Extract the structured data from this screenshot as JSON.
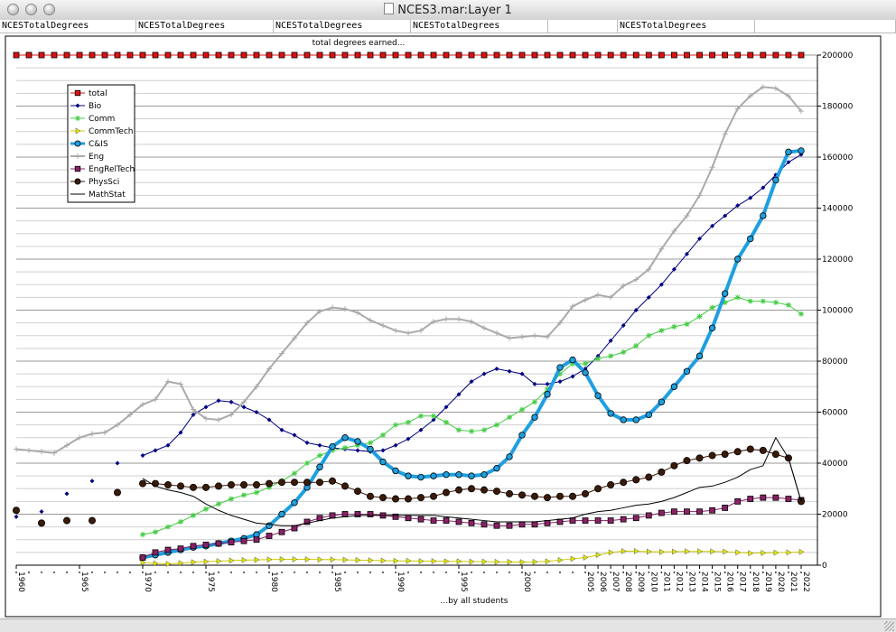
{
  "window": {
    "title": "NCES3.mar:Layer 1"
  },
  "header_cells": [
    "NCESTotalDegrees",
    "NCESTotalDegrees",
    "NCESTotalDegrees",
    "NCESTotalDegrees",
    "",
    "NCESTotalDegrees",
    ""
  ],
  "chart_data": {
    "type": "line",
    "title": "total degrees earned...",
    "xlabel": "...by all students",
    "ylabel": "",
    "ylim": [
      0,
      200000
    ],
    "yticks": [
      0,
      20000,
      40000,
      60000,
      80000,
      100000,
      120000,
      140000,
      160000,
      180000,
      200000
    ],
    "ytick_labels": [
      "0",
      "20000",
      "40000",
      "60000",
      "80000",
      "100000",
      "120000",
      "140000",
      "160000",
      "180000",
      "200000"
    ],
    "xticks": [
      1960,
      1965,
      1970,
      1975,
      1980,
      1985,
      1990,
      1995,
      2000,
      2005,
      2006,
      2007,
      2008,
      2009,
      2010,
      2011,
      2012,
      2013,
      2014,
      2015,
      2016,
      2017,
      2018,
      2019,
      2020,
      2021,
      2022
    ],
    "grid": "horizontal",
    "legend": "top-left",
    "series": [
      {
        "name": "total",
        "color": "#dd1111",
        "marker": "square",
        "x": [
          1960,
          1961,
          1962,
          1963,
          1964,
          1965,
          1966,
          1967,
          1968,
          1969,
          1970,
          1971,
          1972,
          1973,
          1974,
          1975,
          1976,
          1977,
          1978,
          1979,
          1980,
          1981,
          1982,
          1983,
          1984,
          1985,
          1986,
          1987,
          1988,
          1989,
          1990,
          1991,
          1992,
          1993,
          1994,
          1995,
          1996,
          1997,
          1998,
          1999,
          2000,
          2001,
          2002,
          2003,
          2004,
          2005,
          2006,
          2007,
          2008,
          2009,
          2010,
          2011,
          2012,
          2013,
          2014,
          2015,
          2016,
          2017,
          2018,
          2019,
          2020,
          2021,
          2022
        ],
        "y": [
          200000,
          200000,
          200000,
          200000,
          200000,
          200000,
          200000,
          200000,
          200000,
          200000,
          200000,
          200000,
          200000,
          200000,
          200000,
          200000,
          200000,
          200000,
          200000,
          200000,
          200000,
          200000,
          200000,
          200000,
          200000,
          200000,
          200000,
          200000,
          200000,
          200000,
          200000,
          200000,
          200000,
          200000,
          200000,
          200000,
          200000,
          200000,
          200000,
          200000,
          200000,
          200000,
          200000,
          200000,
          200000,
          200000,
          200000,
          200000,
          200000,
          200000,
          200000,
          200000,
          200000,
          200000,
          200000,
          200000,
          200000,
          200000,
          200000,
          200000,
          200000,
          200000,
          200000
        ]
      },
      {
        "name": "Bio",
        "color": "#000080",
        "marker": "diamond",
        "x": [
          1960,
          1962,
          1964,
          1966,
          1968,
          1970,
          1971,
          1972,
          1973,
          1974,
          1975,
          1976,
          1977,
          1978,
          1979,
          1980,
          1981,
          1982,
          1983,
          1984,
          1985,
          1986,
          1987,
          1988,
          1989,
          1990,
          1991,
          1992,
          1993,
          1994,
          1995,
          1996,
          1997,
          1998,
          1999,
          2000,
          2001,
          2002,
          2003,
          2004,
          2005,
          2006,
          2007,
          2008,
          2009,
          2010,
          2011,
          2012,
          2013,
          2014,
          2015,
          2016,
          2017,
          2018,
          2019,
          2020,
          2021,
          2022
        ],
        "y": [
          19000,
          21000,
          28000,
          33000,
          40000,
          43000,
          45000,
          47000,
          52000,
          59000,
          62000,
          64500,
          64000,
          62000,
          60000,
          57000,
          53000,
          51000,
          48000,
          47000,
          46000,
          45500,
          45000,
          44500,
          45000,
          47000,
          49500,
          53000,
          57000,
          62000,
          67000,
          72000,
          75000,
          77000,
          76000,
          75000,
          71000,
          71000,
          72000,
          74000,
          77000,
          82000,
          88000,
          94000,
          100000,
          105000,
          110000,
          116000,
          122000,
          128000,
          133000,
          137000,
          141000,
          144000,
          148000,
          153000,
          158000,
          161000
        ]
      },
      {
        "name": "Comm",
        "color": "#44cc44",
        "marker": "asterisk",
        "x": [
          1970,
          1971,
          1972,
          1973,
          1974,
          1975,
          1976,
          1977,
          1978,
          1979,
          1980,
          1981,
          1982,
          1983,
          1984,
          1985,
          1986,
          1987,
          1988,
          1989,
          1990,
          1991,
          1992,
          1993,
          1994,
          1995,
          1996,
          1997,
          1998,
          1999,
          2000,
          2001,
          2002,
          2003,
          2004,
          2005,
          2006,
          2007,
          2008,
          2009,
          2010,
          2011,
          2012,
          2013,
          2014,
          2015,
          2016,
          2017,
          2018,
          2019,
          2020,
          2021,
          2022
        ],
        "y": [
          12000,
          13000,
          15000,
          17000,
          19500,
          22000,
          24000,
          26000,
          27500,
          28500,
          30500,
          33000,
          36000,
          40000,
          43000,
          45000,
          46000,
          47000,
          48000,
          51000,
          55000,
          56000,
          58500,
          58500,
          56000,
          53000,
          52500,
          53000,
          55000,
          58000,
          61000,
          64000,
          69000,
          75000,
          79000,
          79000,
          81000,
          82000,
          83500,
          86000,
          90000,
          92000,
          93500,
          94500,
          97500,
          101000,
          103000,
          105000,
          103500,
          103500,
          103000,
          102000,
          98500
        ]
      },
      {
        "name": "CommTech",
        "color": "#e8e800",
        "marker": "triangle",
        "x": [
          1970,
          1971,
          1972,
          1973,
          1974,
          1975,
          1976,
          1977,
          1978,
          1979,
          1980,
          1981,
          1982,
          1983,
          1984,
          1985,
          1986,
          1987,
          1988,
          1989,
          1990,
          1991,
          1992,
          1993,
          1994,
          1995,
          1996,
          1997,
          1998,
          1999,
          2000,
          2001,
          2002,
          2003,
          2004,
          2005,
          2006,
          2007,
          2008,
          2009,
          2010,
          2011,
          2012,
          2013,
          2014,
          2015,
          2016,
          2017,
          2018,
          2019,
          2020,
          2021,
          2022
        ],
        "y": [
          1000,
          700,
          500,
          800,
          1200,
          1400,
          1600,
          1800,
          2000,
          2100,
          2200,
          2300,
          2300,
          2300,
          2200,
          2200,
          2100,
          2000,
          1900,
          1800,
          1700,
          1700,
          1600,
          1600,
          1500,
          1500,
          1400,
          1400,
          1300,
          1300,
          1200,
          1300,
          1500,
          2000,
          2500,
          3000,
          4000,
          5000,
          5500,
          5500,
          5300,
          5200,
          5300,
          5400,
          5400,
          5400,
          5300,
          5000,
          4700,
          4800,
          4900,
          5000,
          5200
        ]
      },
      {
        "name": "C&IS",
        "color": "#1e9fe0",
        "marker": "circle",
        "x": [
          1970,
          1971,
          1972,
          1973,
          1974,
          1975,
          1976,
          1977,
          1978,
          1979,
          1980,
          1981,
          1982,
          1983,
          1984,
          1985,
          1986,
          1987,
          1988,
          1989,
          1990,
          1991,
          1992,
          1993,
          1994,
          1995,
          1996,
          1997,
          1998,
          1999,
          2000,
          2001,
          2002,
          2003,
          2004,
          2005,
          2006,
          2007,
          2008,
          2009,
          2010,
          2011,
          2012,
          2013,
          2014,
          2015,
          2016,
          2017,
          2018,
          2019,
          2020,
          2021,
          2022
        ],
        "y": [
          3000,
          4000,
          5000,
          6000,
          7000,
          7500,
          8500,
          9500,
          10500,
          12000,
          15500,
          20000,
          24500,
          30500,
          38500,
          46500,
          50000,
          48500,
          45500,
          40500,
          37000,
          35000,
          34500,
          35000,
          35500,
          35500,
          35000,
          35500,
          38000,
          42500,
          51000,
          58000,
          67000,
          77500,
          80500,
          75500,
          66500,
          59500,
          57000,
          57000,
          59000,
          64000,
          70000,
          76000,
          82000,
          93000,
          106500,
          120000,
          128000,
          137000,
          151000,
          162000,
          162500
        ]
      },
      {
        "name": "Eng",
        "color": "#aaaaaa",
        "marker": "plus",
        "x": [
          1960,
          1961,
          1962,
          1963,
          1964,
          1965,
          1966,
          1967,
          1968,
          1969,
          1970,
          1971,
          1972,
          1973,
          1974,
          1975,
          1976,
          1977,
          1978,
          1979,
          1980,
          1981,
          1982,
          1983,
          1984,
          1985,
          1986,
          1987,
          1988,
          1989,
          1990,
          1991,
          1992,
          1993,
          1994,
          1995,
          1996,
          1997,
          1998,
          1999,
          2000,
          2001,
          2002,
          2003,
          2004,
          2005,
          2006,
          2007,
          2008,
          2009,
          2010,
          2011,
          2012,
          2013,
          2014,
          2015,
          2016,
          2017,
          2018,
          2019,
          2020,
          2021,
          2022
        ],
        "y": [
          45500,
          45000,
          44500,
          44000,
          47000,
          50000,
          51500,
          52000,
          55000,
          59000,
          63000,
          65000,
          72000,
          71000,
          61000,
          57500,
          57000,
          59000,
          64000,
          70000,
          77000,
          83000,
          89000,
          95000,
          99500,
          101000,
          100500,
          99000,
          96000,
          94000,
          92000,
          91000,
          92000,
          95500,
          96500,
          96500,
          95500,
          93000,
          91000,
          89000,
          89500,
          90000,
          89500,
          95000,
          101500,
          104000,
          106000,
          105000,
          109500,
          112000,
          116000,
          124000,
          131000,
          137000,
          145000,
          156000,
          169000,
          179000,
          184000,
          187500,
          187000,
          184000,
          178000
        ]
      },
      {
        "name": "EngRelTech",
        "color": "#882266",
        "marker": "square",
        "x": [
          1970,
          1971,
          1972,
          1973,
          1974,
          1975,
          1976,
          1977,
          1978,
          1979,
          1980,
          1981,
          1982,
          1983,
          1984,
          1985,
          1986,
          1987,
          1988,
          1989,
          1990,
          1991,
          1992,
          1993,
          1994,
          1995,
          1996,
          1997,
          1998,
          1999,
          2000,
          2001,
          2002,
          2003,
          2004,
          2005,
          2006,
          2007,
          2008,
          2009,
          2010,
          2011,
          2012,
          2013,
          2014,
          2015,
          2016,
          2017,
          2018,
          2019,
          2020,
          2021,
          2022
        ],
        "y": [
          3000,
          5000,
          6000,
          6500,
          7500,
          8000,
          8500,
          9000,
          9500,
          10000,
          11500,
          13000,
          14500,
          17000,
          18500,
          19500,
          20000,
          20000,
          20000,
          19500,
          19000,
          18500,
          18000,
          17500,
          17500,
          17000,
          16500,
          16000,
          15500,
          15500,
          16000,
          16000,
          16500,
          17000,
          17500,
          17500,
          17500,
          17500,
          18000,
          18500,
          19500,
          20500,
          21000,
          21000,
          21000,
          21500,
          22500,
          25000,
          26000,
          26500,
          26500,
          26000,
          25500
        ]
      },
      {
        "name": "PhysSci",
        "color": "#3a1a08",
        "marker": "circle",
        "x": [
          1960,
          1962,
          1964,
          1966,
          1968,
          1970,
          1971,
          1972,
          1973,
          1974,
          1975,
          1976,
          1977,
          1978,
          1979,
          1980,
          1981,
          1982,
          1983,
          1984,
          1985,
          1986,
          1987,
          1988,
          1989,
          1990,
          1991,
          1992,
          1993,
          1994,
          1995,
          1996,
          1997,
          1998,
          1999,
          2000,
          2001,
          2002,
          2003,
          2004,
          2005,
          2006,
          2007,
          2008,
          2009,
          2010,
          2011,
          2012,
          2013,
          2014,
          2015,
          2016,
          2017,
          2018,
          2019,
          2020,
          2021,
          2022
        ],
        "y": [
          21500,
          16500,
          17500,
          17500,
          28500,
          32000,
          32000,
          31500,
          31000,
          30500,
          30500,
          31000,
          31500,
          31500,
          31500,
          32000,
          32500,
          32500,
          32500,
          32500,
          33000,
          31000,
          29000,
          27000,
          26500,
          26000,
          26000,
          26500,
          27000,
          28500,
          29500,
          30000,
          29500,
          29000,
          28000,
          27500,
          27000,
          26500,
          27000,
          27000,
          28000,
          30000,
          31500,
          32500,
          33500,
          34500,
          36500,
          39000,
          41000,
          42000,
          43000,
          43500,
          44500,
          45500,
          45000,
          43500,
          42000,
          25000
        ]
      },
      {
        "name": "MathStat",
        "color": "#000000",
        "marker": "none",
        "x": [
          1970,
          1971,
          1972,
          1973,
          1974,
          1975,
          1976,
          1977,
          1978,
          1979,
          1980,
          1981,
          1982,
          1983,
          1984,
          1985,
          1986,
          1987,
          1988,
          1989,
          1990,
          1991,
          1992,
          1993,
          1994,
          1995,
          1996,
          1997,
          1998,
          1999,
          2000,
          2001,
          2002,
          2003,
          2004,
          2005,
          2006,
          2007,
          2008,
          2009,
          2010,
          2011,
          2012,
          2013,
          2014,
          2015,
          2016,
          2017,
          2018,
          2019,
          2020,
          2021,
          2022
        ],
        "y": [
          34000,
          31000,
          29500,
          28500,
          27000,
          24000,
          21500,
          19500,
          18000,
          16500,
          16000,
          15500,
          15500,
          16500,
          17500,
          18500,
          19000,
          19500,
          19500,
          19500,
          19500,
          19500,
          19500,
          19500,
          19000,
          18500,
          18000,
          17500,
          17000,
          17000,
          17000,
          17000,
          17500,
          18000,
          18500,
          20000,
          21000,
          21500,
          22500,
          23500,
          24000,
          25000,
          26500,
          28500,
          30500,
          31000,
          32500,
          34500,
          37500,
          39000,
          50000,
          42000,
          25000
        ]
      }
    ]
  }
}
